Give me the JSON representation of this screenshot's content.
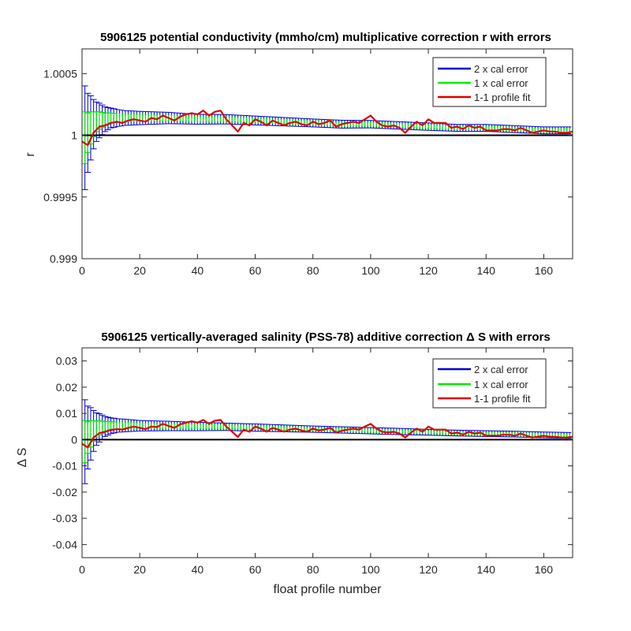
{
  "chart_data": [
    {
      "type": "line",
      "title": "5906125 potential conductivity (mmho/cm) multiplicative correction r with errors",
      "xlabel": "",
      "ylabel": "r",
      "xlim": [
        0,
        170
      ],
      "ylim": [
        0.999,
        1.0007
      ],
      "xticks": [
        0,
        20,
        40,
        60,
        80,
        100,
        120,
        140,
        160
      ],
      "yticks": [
        0.999,
        0.9995,
        1,
        1.0005
      ],
      "ytick_labels": [
        "0.999",
        "0.9995",
        "1",
        "1.0005"
      ],
      "grid": false,
      "legend_position": "top-right",
      "legend": [
        "2 x cal error",
        "1 x cal error",
        "1-1 profile fit"
      ],
      "colors": {
        "two_x": "#0000d8",
        "one_x": "#00ee00",
        "fit": "#e00000",
        "reference": "#000000"
      },
      "reference_line": 1,
      "fit_x": [
        0,
        2,
        4,
        6,
        8,
        10,
        12,
        14,
        16,
        18,
        20,
        22,
        24,
        26,
        28,
        30,
        32,
        34,
        36,
        38,
        40,
        42,
        44,
        46,
        48,
        50,
        52,
        54,
        56,
        58,
        60,
        62,
        64,
        66,
        68,
        70,
        72,
        74,
        76,
        78,
        80,
        82,
        84,
        86,
        88,
        90,
        92,
        94,
        96,
        98,
        100,
        102,
        104,
        106,
        108,
        110,
        112,
        114,
        116,
        118,
        120,
        122,
        124,
        126,
        128,
        130,
        132,
        134,
        136,
        138,
        140,
        142,
        144,
        146,
        148,
        150,
        152,
        154,
        156,
        158,
        160,
        162,
        164,
        166,
        168,
        170
      ],
      "fit_y": [
        0.99995,
        0.99992,
        1.00002,
        1.00007,
        1.00008,
        1.0001,
        1.00011,
        1.0001,
        1.00012,
        1.00013,
        1.00012,
        1.00011,
        1.00014,
        1.00013,
        1.00016,
        1.00014,
        1.00012,
        1.00015,
        1.00017,
        1.00018,
        1.00017,
        1.0002,
        1.00016,
        1.00019,
        1.0002,
        1.00013,
        1.00008,
        1.00003,
        1.0001,
        1.00008,
        1.00013,
        1.00011,
        1.00008,
        1.00012,
        1.0001,
        1.00008,
        1.0001,
        1.00011,
        1.00009,
        1.00008,
        1.00011,
        1.00009,
        1.0001,
        1.00012,
        1.00007,
        1.00009,
        1.0001,
        1.00011,
        1.0001,
        1.00013,
        1.00016,
        1.00011,
        1.00008,
        1.00007,
        1.00008,
        1.00006,
        1.00002,
        1.00007,
        1.00011,
        1.00008,
        1.00013,
        1.0001,
        1.0001,
        1.0001,
        1.00006,
        1.00007,
        1.00005,
        1.00008,
        1.00006,
        1.00007,
        1.00004,
        1.00004,
        1.00004,
        1.00005,
        1.00005,
        1.00004,
        1.00006,
        1.00004,
        1.00002,
        1.00003,
        1.00004,
        1.00003,
        1.00003,
        1.00002,
        1.00002,
        1.00003
      ],
      "band_x": [
        0,
        1,
        2,
        3,
        4,
        5,
        6,
        8,
        10,
        12,
        15,
        20,
        30,
        40,
        50,
        60,
        70,
        80,
        90,
        100,
        110,
        120,
        130,
        140,
        150,
        160,
        170
      ],
      "band_center": [
        0.99995,
        0.99998,
        1.00002,
        1.00006,
        1.00009,
        1.00011,
        1.00012,
        1.00013,
        1.00014,
        1.00014,
        1.00014,
        1.00014,
        1.00014,
        1.00013,
        1.00013,
        1.00012,
        1.00011,
        1.0001,
        1.00009,
        1.00009,
        1.00008,
        1.00007,
        1.00006,
        1.00006,
        1.00005,
        1.00004,
        1.00004
      ],
      "band_err1": [
        0.0003,
        0.00021,
        0.00016,
        0.00013,
        0.0001,
        8e-05,
        7e-05,
        5e-05,
        4e-05,
        3.5e-05,
        3e-05,
        2.7e-05,
        2.3e-05,
        2e-05,
        1.9e-05,
        1.8e-05,
        1.7e-05,
        1.6e-05,
        1.6e-05,
        1.5e-05,
        1.5e-05,
        1.5e-05,
        1.4e-05,
        1.4e-05,
        1.4e-05,
        1.4e-05,
        1.4e-05
      ]
    },
    {
      "type": "line",
      "title": "5906125 vertically-averaged salinity (PSS-78) additive correction Δ S with errors",
      "xlabel": "float profile number",
      "ylabel": "Δ S",
      "xlim": [
        0,
        170
      ],
      "ylim": [
        -0.045,
        0.035
      ],
      "xticks": [
        0,
        20,
        40,
        60,
        80,
        100,
        120,
        140,
        160
      ],
      "yticks": [
        -0.04,
        -0.03,
        -0.02,
        -0.01,
        0,
        0.01,
        0.02,
        0.03
      ],
      "ytick_labels": [
        "-0.04",
        "-0.03",
        "-0.02",
        "-0.01",
        "0",
        "0.01",
        "0.02",
        "0.03"
      ],
      "grid": false,
      "legend_position": "top-right",
      "legend": [
        "2 x cal error",
        "1 x cal error",
        "1-1 profile fit"
      ],
      "colors": {
        "two_x": "#0000d8",
        "one_x": "#00ee00",
        "fit": "#e00000",
        "reference": "#000000"
      },
      "reference_line": 0,
      "fit_x": [
        0,
        2,
        4,
        6,
        8,
        10,
        12,
        14,
        16,
        18,
        20,
        22,
        24,
        26,
        28,
        30,
        32,
        34,
        36,
        38,
        40,
        42,
        44,
        46,
        48,
        50,
        52,
        54,
        56,
        58,
        60,
        62,
        64,
        66,
        68,
        70,
        72,
        74,
        76,
        78,
        80,
        82,
        84,
        86,
        88,
        90,
        92,
        94,
        96,
        98,
        100,
        102,
        104,
        106,
        108,
        110,
        112,
        114,
        116,
        118,
        120,
        122,
        124,
        126,
        128,
        130,
        132,
        134,
        136,
        138,
        140,
        142,
        144,
        146,
        148,
        150,
        152,
        154,
        156,
        158,
        160,
        162,
        164,
        166,
        168,
        170
      ],
      "fit_y": [
        -0.0015,
        -0.003,
        0.0008,
        0.0025,
        0.003,
        0.0037,
        0.004,
        0.0038,
        0.0045,
        0.005,
        0.0045,
        0.004,
        0.005,
        0.0048,
        0.006,
        0.0052,
        0.0045,
        0.0058,
        0.0065,
        0.007,
        0.0065,
        0.0075,
        0.006,
        0.0072,
        0.0075,
        0.005,
        0.003,
        0.001,
        0.0038,
        0.003,
        0.005,
        0.0042,
        0.003,
        0.0045,
        0.0038,
        0.003,
        0.0038,
        0.0042,
        0.0035,
        0.003,
        0.0042,
        0.0035,
        0.0038,
        0.0045,
        0.0027,
        0.0034,
        0.0038,
        0.0042,
        0.0038,
        0.005,
        0.006,
        0.0042,
        0.003,
        0.0027,
        0.003,
        0.0023,
        0.0008,
        0.0027,
        0.0042,
        0.003,
        0.005,
        0.0038,
        0.0038,
        0.0038,
        0.0023,
        0.0027,
        0.0019,
        0.003,
        0.0023,
        0.0027,
        0.0015,
        0.0015,
        0.0015,
        0.0019,
        0.0019,
        0.0015,
        0.0023,
        0.0015,
        0.0008,
        0.0011,
        0.0015,
        0.0011,
        0.0011,
        0.0008,
        0.0008,
        0.0011
      ],
      "band_x": [
        0,
        1,
        2,
        3,
        4,
        5,
        6,
        8,
        10,
        12,
        15,
        20,
        30,
        40,
        50,
        60,
        70,
        80,
        90,
        100,
        110,
        120,
        130,
        140,
        150,
        160,
        170
      ],
      "band_center": [
        -0.002,
        -0.0008,
        0.0008,
        0.0022,
        0.0033,
        0.004,
        0.0045,
        0.005,
        0.0053,
        0.0054,
        0.0054,
        0.0053,
        0.0052,
        0.005,
        0.0049,
        0.0046,
        0.0043,
        0.004,
        0.0037,
        0.0034,
        0.0031,
        0.0028,
        0.0025,
        0.0023,
        0.0021,
        0.0018,
        0.0016
      ],
      "band_err1": [
        0.0115,
        0.008,
        0.006,
        0.005,
        0.0039,
        0.0031,
        0.0027,
        0.0019,
        0.0015,
        0.0013,
        0.0012,
        0.001,
        0.0009,
        0.0008,
        0.0007,
        0.0007,
        0.00065,
        0.0006,
        0.0006,
        0.0006,
        0.0006,
        0.00055,
        0.00055,
        0.00055,
        0.00055,
        0.00055,
        0.00055
      ]
    }
  ]
}
